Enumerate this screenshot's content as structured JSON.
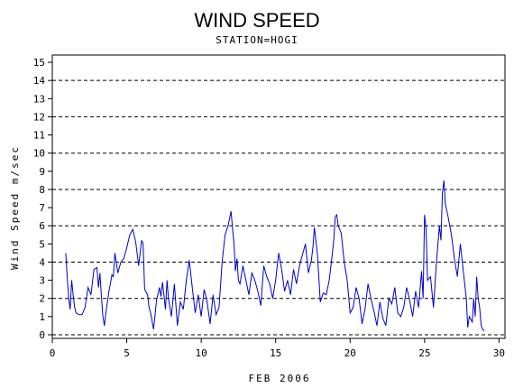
{
  "chart_data": {
    "type": "line",
    "title": "WIND SPEED",
    "subtitle": "STATION=HOGI",
    "xlabel": "FEB 2006",
    "ylabel": "Wind Speed m/sec",
    "xlim": [
      0,
      30.4
    ],
    "ylim": [
      -0.2,
      15.4
    ],
    "xticks": [
      0,
      5,
      10,
      15,
      20,
      25,
      30
    ],
    "yticks": [
      0,
      1,
      2,
      3,
      4,
      5,
      6,
      7,
      8,
      9,
      10,
      11,
      12,
      13,
      14,
      15
    ],
    "ref_lines": [
      0,
      2,
      4,
      6,
      8,
      10,
      12,
      14
    ],
    "line_color": "#0000cc",
    "series": [
      {
        "x": [
          0.9,
          1.0,
          1.1,
          1.2,
          1.3,
          1.4,
          1.5,
          1.6,
          1.8,
          2.0,
          2.2,
          2.4,
          2.6,
          2.8,
          3.0,
          3.1,
          3.2,
          3.3,
          3.4,
          3.5,
          3.6,
          3.8,
          3.9,
          4.0,
          4.1,
          4.2,
          4.4,
          4.6,
          4.8,
          5.0,
          5.2,
          5.4,
          5.6,
          5.8,
          5.9,
          6.0,
          6.1,
          6.2,
          6.4,
          6.5,
          6.6,
          6.8,
          7.0,
          7.2,
          7.3,
          7.4,
          7.6,
          7.7,
          7.8,
          8.0,
          8.2,
          8.4,
          8.6,
          8.8,
          9.0,
          9.2,
          9.4,
          9.6,
          9.8,
          10.0,
          10.2,
          10.4,
          10.6,
          10.8,
          11.0,
          11.2,
          11.4,
          11.6,
          11.8,
          12.0,
          12.1,
          12.2,
          12.3,
          12.4,
          12.5,
          12.6,
          12.8,
          13.0,
          13.2,
          13.4,
          13.6,
          13.8,
          14.0,
          14.2,
          14.4,
          14.6,
          14.8,
          15.0,
          15.2,
          15.4,
          15.6,
          15.8,
          16.0,
          16.2,
          16.4,
          16.6,
          16.8,
          17.0,
          17.2,
          17.4,
          17.5,
          17.6,
          17.8,
          18.0,
          18.2,
          18.4,
          18.6,
          18.8,
          18.9,
          19.0,
          19.1,
          19.2,
          19.4,
          19.6,
          19.8,
          20.0,
          20.2,
          20.4,
          20.6,
          20.8,
          21.0,
          21.2,
          21.4,
          21.6,
          21.8,
          22.0,
          22.2,
          22.4,
          22.6,
          22.8,
          23.0,
          23.2,
          23.4,
          23.6,
          23.8,
          24.0,
          24.2,
          24.4,
          24.6,
          24.8,
          24.9,
          25.0,
          25.1,
          25.2,
          25.4,
          25.6,
          25.8,
          26.0,
          26.1,
          26.2,
          26.3,
          26.4,
          26.6,
          26.8,
          27.0,
          27.2,
          27.4,
          27.6,
          27.8,
          27.9,
          28.0,
          28.2,
          28.3,
          28.4,
          28.5,
          28.6,
          28.7,
          28.8,
          28.9,
          29.0
        ],
        "y": [
          4.5,
          3.2,
          2.0,
          1.4,
          3.0,
          2.2,
          1.5,
          1.2,
          1.1,
          1.1,
          1.5,
          2.6,
          2.2,
          3.6,
          3.7,
          2.6,
          3.4,
          2.1,
          1.0,
          0.5,
          1.2,
          2.4,
          2.8,
          3.3,
          3.2,
          4.5,
          3.4,
          4.0,
          4.2,
          4.8,
          5.5,
          5.8,
          5.1,
          3.8,
          4.5,
          5.2,
          5.0,
          2.5,
          2.2,
          1.5,
          1.2,
          0.3,
          1.9,
          2.6,
          2.1,
          2.9,
          1.4,
          3.0,
          2.0,
          1.0,
          2.8,
          0.5,
          1.8,
          1.4,
          3.0,
          4.1,
          2.6,
          1.2,
          2.2,
          1.0,
          2.5,
          1.8,
          0.6,
          2.2,
          1.1,
          1.5,
          4.0,
          5.5,
          6.0,
          6.8,
          5.9,
          5.0,
          3.5,
          4.2,
          3.0,
          2.8,
          3.8,
          3.0,
          2.2,
          3.4,
          3.0,
          2.4,
          1.6,
          3.8,
          3.2,
          2.8,
          2.0,
          3.0,
          4.5,
          3.6,
          2.4,
          3.0,
          2.2,
          3.6,
          2.8,
          3.8,
          4.4,
          5.0,
          3.4,
          4.1,
          4.8,
          5.9,
          4.5,
          1.8,
          2.3,
          2.2,
          3.0,
          4.4,
          5.2,
          6.5,
          6.6,
          6.0,
          5.6,
          4.0,
          3.0,
          1.2,
          1.5,
          2.6,
          2.0,
          0.6,
          1.4,
          2.8,
          2.0,
          1.3,
          0.5,
          1.8,
          0.9,
          0.5,
          2.0,
          1.7,
          2.6,
          1.2,
          1.0,
          1.5,
          2.6,
          1.9,
          1.0,
          2.4,
          1.5,
          3.5,
          2.0,
          6.6,
          5.8,
          3.0,
          3.2,
          1.5,
          4.0,
          6.0,
          5.2,
          7.8,
          8.5,
          7.2,
          6.4,
          5.5,
          4.2,
          3.2,
          5.0,
          3.5,
          2.0,
          0.4,
          1.0,
          0.7,
          2.0,
          1.0,
          3.2,
          2.0,
          1.5,
          0.5,
          0.3,
          0.2
        ]
      }
    ]
  }
}
